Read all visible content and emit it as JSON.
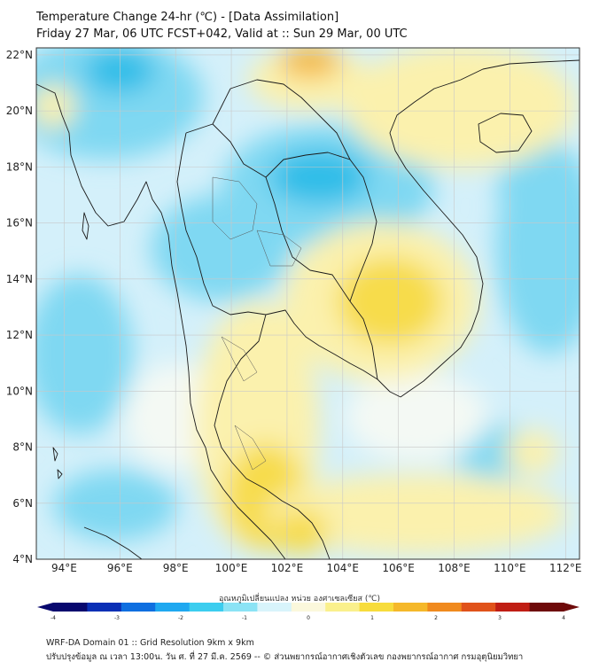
{
  "title": {
    "line1": "Temperature Change 24-hr (℃) - [Data Assimilation]",
    "line2": "Friday 27 Mar, 06 UTC FCST+042, Valid at :: Sun 29 Mar, 00 UTC"
  },
  "map": {
    "lat_range": [
      4,
      22.25
    ],
    "lon_range": [
      93,
      112.5
    ],
    "lat_ticks": [
      "4°N",
      "6°N",
      "8°N",
      "10°N",
      "12°N",
      "14°N",
      "16°N",
      "18°N",
      "20°N",
      "22°N"
    ],
    "lat_values": [
      4,
      6,
      8,
      10,
      12,
      14,
      16,
      18,
      20,
      22
    ],
    "lon_ticks": [
      "94°E",
      "96°E",
      "98°E",
      "100°E",
      "102°E",
      "104°E",
      "106°E",
      "108°E",
      "110°E",
      "112°E"
    ],
    "lon_values": [
      94,
      96,
      98,
      100,
      102,
      104,
      106,
      108,
      110,
      112
    ],
    "colors": {
      "background": "#d4f0fa",
      "cool": "#7fd8f2",
      "cold": "#2dbde8",
      "neutral": "#f4f9f4",
      "warm": "#fbf1ad",
      "warmer": "#f7dc4c",
      "hot": "#f5b83a",
      "border": "#1a1a1a",
      "grid": "#c8c8c8"
    }
  },
  "colorbar": {
    "title": "อุณหภูมิเปลี่ยนแปลง หน่วย องศาเซลเซียส (℃)",
    "ticks": [
      "-4",
      "-3",
      "-2",
      "-1",
      "0",
      "1",
      "2",
      "3",
      "4"
    ],
    "tick_values": [
      -4,
      -3,
      -2,
      -1,
      0,
      1,
      2,
      3,
      4
    ],
    "colors": [
      "#08086e",
      "#0a2fb5",
      "#0f6fe0",
      "#1fa8f0",
      "#3ccdef",
      "#8be3f5",
      "#d8f4fb",
      "#fbf8dc",
      "#faf08c",
      "#f7dc3c",
      "#f5b82a",
      "#f08a1e",
      "#e0521a",
      "#c01e14",
      "#6e0a0a"
    ]
  },
  "footer": {
    "line1": "WRF-DA Domain 01 :: Grid Resolution 9km x 9km",
    "line2": "ปรับปรุงข้อมูล ณ เวลา 13:00น. วัน ศ. ที่ 27 มี.ค. 2569 -- © ส่วนพยากรณ์อากาศเชิงตัวเลข กองพยากรณ์อากาศ กรมอุตุนิยมวิทยา"
  }
}
